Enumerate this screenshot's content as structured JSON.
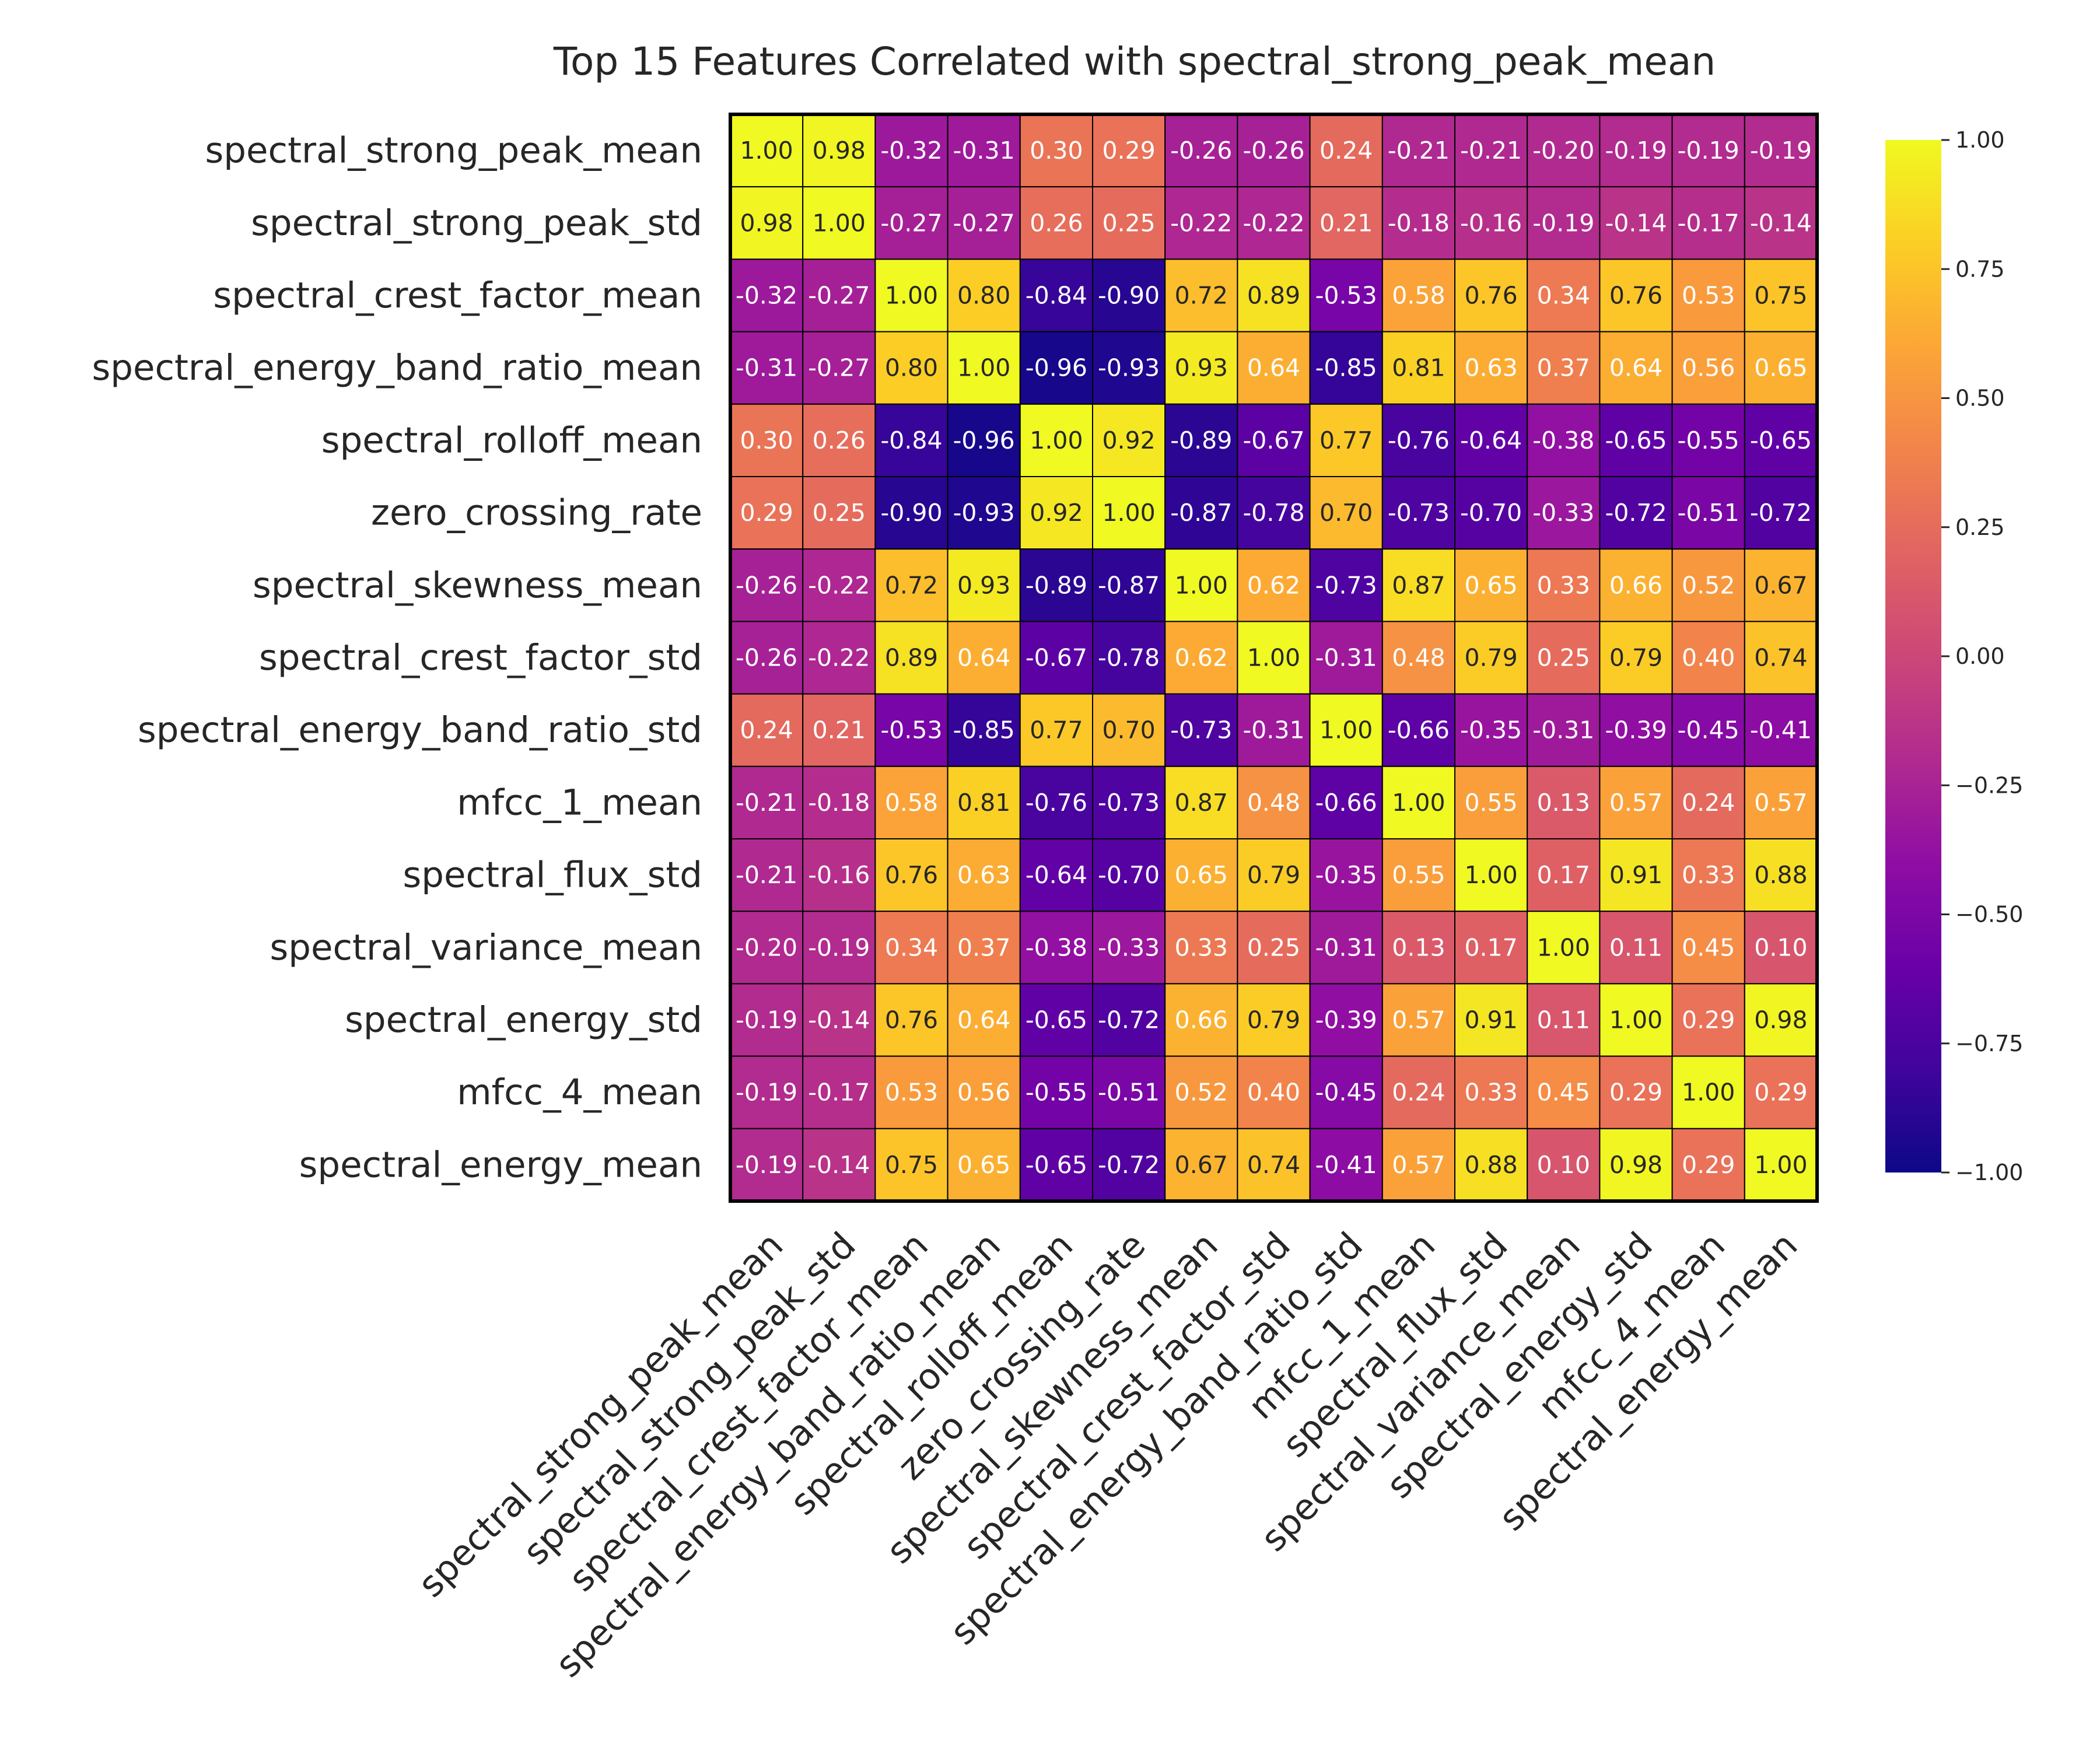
{
  "chart_data": {
    "type": "heatmap",
    "title": "Top 15 Features Correlated with spectral_strong_peak_mean",
    "xlabel": "",
    "ylabel": "",
    "colormap": "plasma",
    "vmin": -1.0,
    "vmax": 1.0,
    "grid": false,
    "legend": "colorbar-right",
    "colorbar_ticks": [
      "1.00",
      "0.75",
      "0.50",
      "0.25",
      "0.00",
      "−0.25",
      "−0.50",
      "−0.75",
      "−1.00"
    ],
    "categories": [
      "spectral_strong_peak_mean",
      "spectral_strong_peak_std",
      "spectral_crest_factor_mean",
      "spectral_energy_band_ratio_mean",
      "spectral_rolloff_mean",
      "zero_crossing_rate",
      "spectral_skewness_mean",
      "spectral_crest_factor_std",
      "spectral_energy_band_ratio_std",
      "mfcc_1_mean",
      "spectral_flux_std",
      "spectral_variance_mean",
      "spectral_energy_std",
      "mfcc_4_mean",
      "spectral_energy_mean"
    ],
    "values": [
      [
        1.0,
        0.98,
        -0.32,
        -0.31,
        0.3,
        0.29,
        -0.26,
        -0.26,
        0.24,
        -0.21,
        -0.21,
        -0.2,
        -0.19,
        -0.19,
        -0.19
      ],
      [
        0.98,
        1.0,
        -0.27,
        -0.27,
        0.26,
        0.25,
        -0.22,
        -0.22,
        0.21,
        -0.18,
        -0.16,
        -0.19,
        -0.14,
        -0.17,
        -0.14
      ],
      [
        -0.32,
        -0.27,
        1.0,
        0.8,
        -0.84,
        -0.9,
        0.72,
        0.89,
        -0.53,
        0.58,
        0.76,
        0.34,
        0.76,
        0.53,
        0.75
      ],
      [
        -0.31,
        -0.27,
        0.8,
        1.0,
        -0.96,
        -0.93,
        0.93,
        0.64,
        -0.85,
        0.81,
        0.63,
        0.37,
        0.64,
        0.56,
        0.65
      ],
      [
        0.3,
        0.26,
        -0.84,
        -0.96,
        1.0,
        0.92,
        -0.89,
        -0.67,
        0.77,
        -0.76,
        -0.64,
        -0.38,
        -0.65,
        -0.55,
        -0.65
      ],
      [
        0.29,
        0.25,
        -0.9,
        -0.93,
        0.92,
        1.0,
        -0.87,
        -0.78,
        0.7,
        -0.73,
        -0.7,
        -0.33,
        -0.72,
        -0.51,
        -0.72
      ],
      [
        -0.26,
        -0.22,
        0.72,
        0.93,
        -0.89,
        -0.87,
        1.0,
        0.62,
        -0.73,
        0.87,
        0.65,
        0.33,
        0.66,
        0.52,
        0.67
      ],
      [
        -0.26,
        -0.22,
        0.89,
        0.64,
        -0.67,
        -0.78,
        0.62,
        1.0,
        -0.31,
        0.48,
        0.79,
        0.25,
        0.79,
        0.4,
        0.74
      ],
      [
        0.24,
        0.21,
        -0.53,
        -0.85,
        0.77,
        0.7,
        -0.73,
        -0.31,
        1.0,
        -0.66,
        -0.35,
        -0.31,
        -0.39,
        -0.45,
        -0.41
      ],
      [
        -0.21,
        -0.18,
        0.58,
        0.81,
        -0.76,
        -0.73,
        0.87,
        0.48,
        -0.66,
        1.0,
        0.55,
        0.13,
        0.57,
        0.24,
        0.57
      ],
      [
        -0.21,
        -0.16,
        0.76,
        0.63,
        -0.64,
        -0.7,
        0.65,
        0.79,
        -0.35,
        0.55,
        1.0,
        0.17,
        0.91,
        0.33,
        0.88
      ],
      [
        -0.2,
        -0.19,
        0.34,
        0.37,
        -0.38,
        -0.33,
        0.33,
        0.25,
        -0.31,
        0.13,
        0.17,
        1.0,
        0.11,
        0.45,
        0.1
      ],
      [
        -0.19,
        -0.14,
        0.76,
        0.64,
        -0.65,
        -0.72,
        0.66,
        0.79,
        -0.39,
        0.57,
        0.91,
        0.11,
        1.0,
        0.29,
        0.98
      ],
      [
        -0.19,
        -0.17,
        0.53,
        0.56,
        -0.55,
        -0.51,
        0.52,
        0.4,
        -0.45,
        0.24,
        0.33,
        0.45,
        0.29,
        1.0,
        0.29
      ],
      [
        -0.19,
        -0.14,
        0.75,
        0.65,
        -0.65,
        -0.72,
        0.67,
        0.74,
        -0.41,
        0.57,
        0.88,
        0.1,
        0.98,
        0.29,
        1.0
      ]
    ]
  }
}
